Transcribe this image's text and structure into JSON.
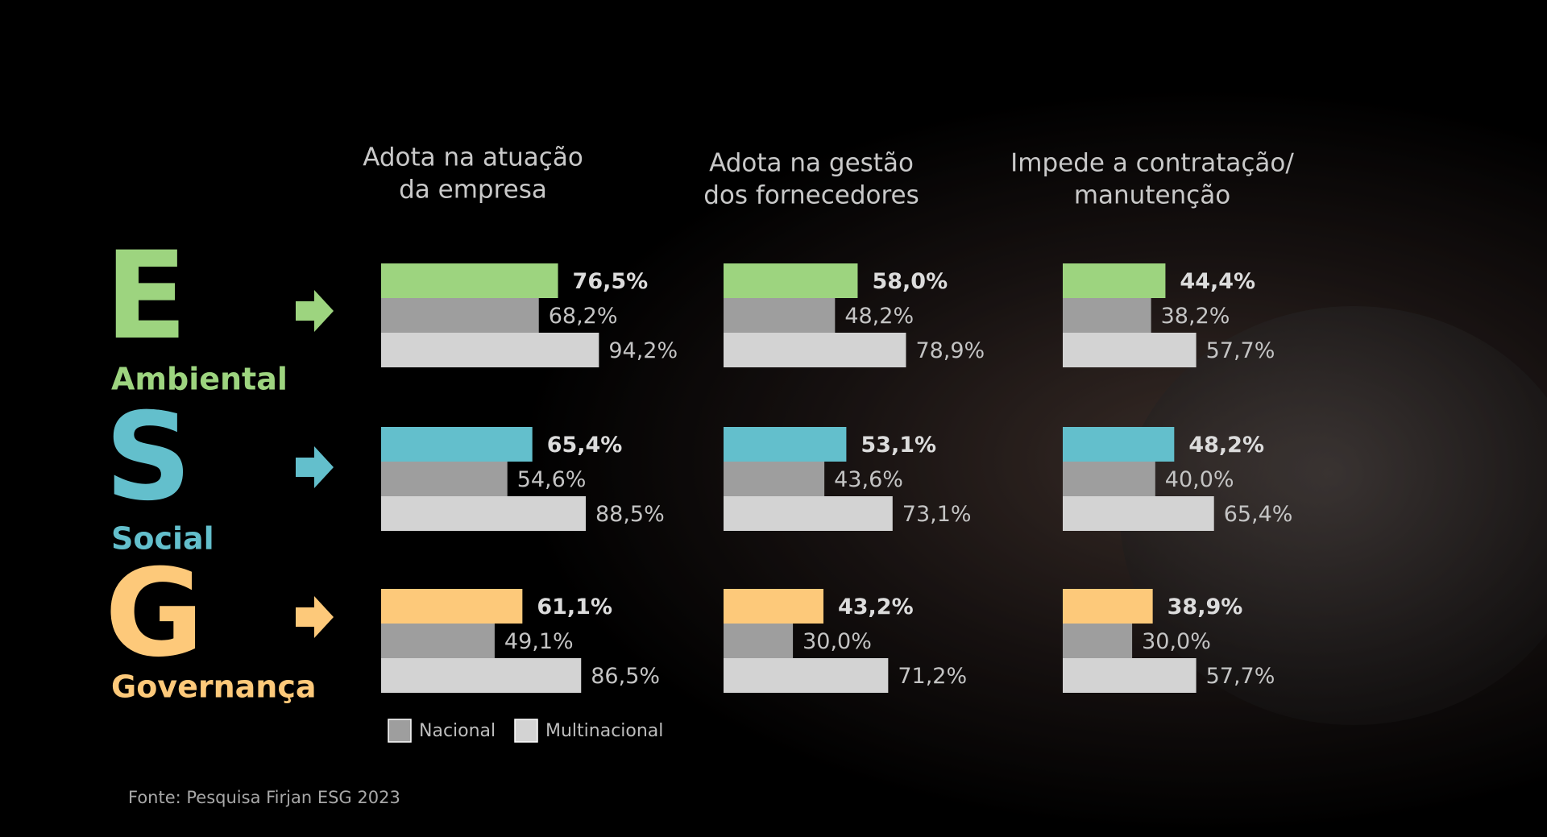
{
  "columns": [
    [
      "Adota na atuação",
      "da empresa"
    ],
    [
      "Adota na gestão",
      "dos fornecedores"
    ],
    [
      "Impede a contratação/",
      "manutenção"
    ]
  ],
  "rows": [
    {
      "letter": "E",
      "label": "Ambiental",
      "color": "#9dd47f",
      "values": [
        [
          76.5,
          68.2,
          94.2
        ],
        [
          58.0,
          48.2,
          78.9
        ],
        [
          44.4,
          38.2,
          57.7
        ]
      ],
      "value_labels": [
        [
          "76,5%",
          "68,2%",
          "94,2%"
        ],
        [
          "58,0%",
          "48,2%",
          "78,9%"
        ],
        [
          "44,4%",
          "38,2%",
          "57,7%"
        ]
      ]
    },
    {
      "letter": "S",
      "label": "Social",
      "color": "#63bfcc",
      "values": [
        [
          65.4,
          54.6,
          88.5
        ],
        [
          53.1,
          43.6,
          73.1
        ],
        [
          48.2,
          40.0,
          65.4
        ]
      ],
      "value_labels": [
        [
          "65,4%",
          "54,6%",
          "88,5%"
        ],
        [
          "53,1%",
          "43,6%",
          "73,1%"
        ],
        [
          "48,2%",
          "40,0%",
          "65,4%"
        ]
      ]
    },
    {
      "letter": "G",
      "label": "Governança",
      "color": "#fdc97a",
      "values": [
        [
          61.1,
          49.1,
          86.5
        ],
        [
          43.2,
          30.0,
          71.2
        ],
        [
          38.9,
          30.0,
          57.7
        ]
      ],
      "value_labels": [
        [
          "61,1%",
          "49,1%",
          "86,5%"
        ],
        [
          "43,2%",
          "30,0%",
          "71,2%"
        ],
        [
          "38,9%",
          "30,0%",
          "57,7%"
        ]
      ]
    }
  ],
  "legend": [
    {
      "name": "Nacional",
      "color": "#9e9e9e"
    },
    {
      "name": "Multinacional",
      "color": "#d3d3d3"
    }
  ],
  "source": "Fonte: Pesquisa Firjan ESG 2023"
}
